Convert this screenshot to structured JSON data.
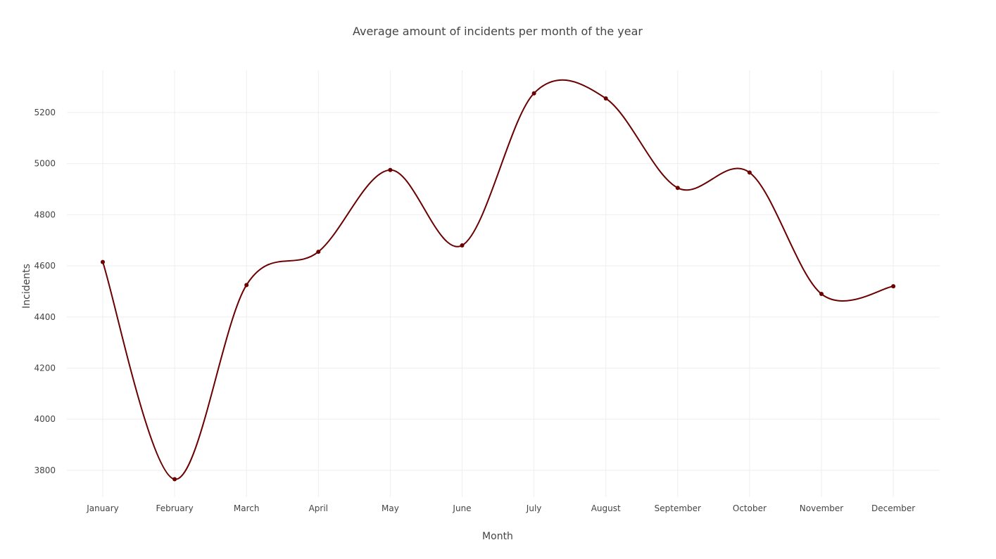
{
  "chart_data": {
    "type": "line",
    "title": "Average amount of incidents per month of the year",
    "xlabel": "Month",
    "ylabel": "Incidents",
    "categories": [
      "January",
      "February",
      "March",
      "April",
      "May",
      "June",
      "July",
      "August",
      "September",
      "October",
      "November",
      "December"
    ],
    "values": [
      4615,
      3765,
      4525,
      4655,
      4975,
      4680,
      5275,
      5255,
      4905,
      4965,
      4490,
      4520
    ],
    "yticks": [
      3800,
      4000,
      4200,
      4400,
      4600,
      4800,
      5000,
      5200
    ],
    "ylim": [
      3695,
      5365
    ],
    "grid": true,
    "line_shape": "spline",
    "colors": {
      "line": "#6b0000",
      "marker": "#6b0000",
      "grid": "#eeeeee",
      "text": "#444444"
    }
  }
}
